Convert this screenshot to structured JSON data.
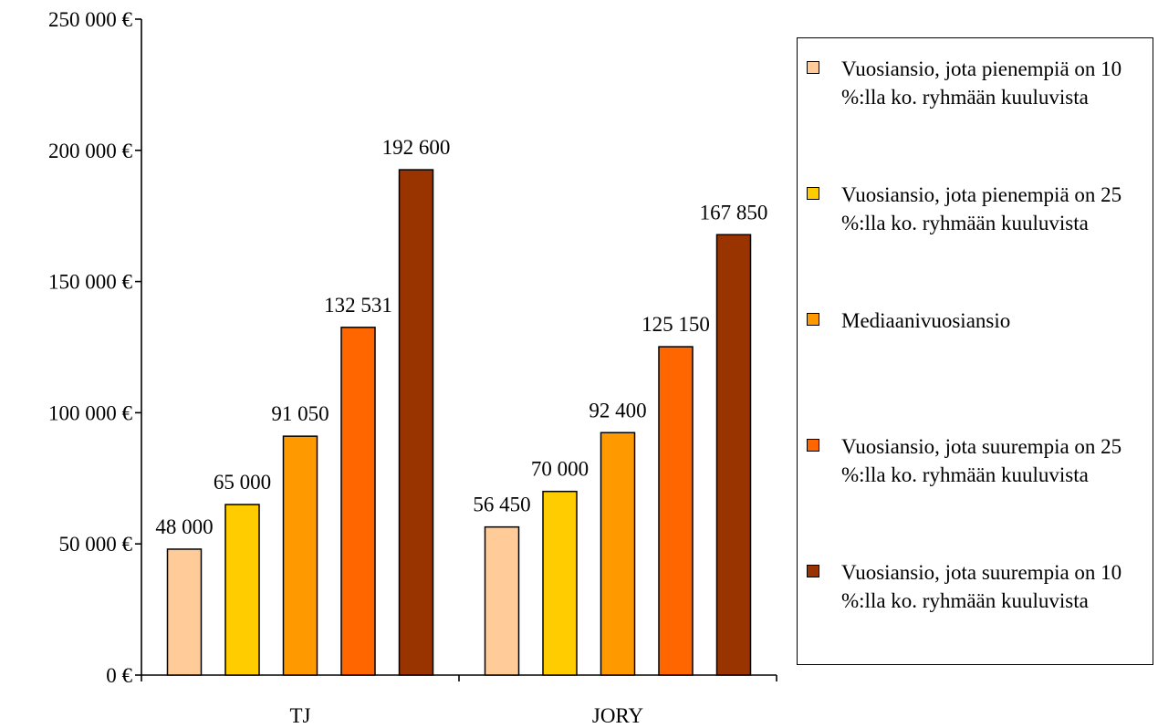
{
  "chart_data": {
    "type": "bar",
    "categories": [
      "TJ",
      "JORY"
    ],
    "series": [
      {
        "name": "Vuosiansio, jota pienempiä on 10 %:lla ko. ryhmään kuuluvista",
        "color": "#ffcc99",
        "values": [
          48000,
          56450
        ],
        "labels": [
          "48 000",
          "56 450"
        ]
      },
      {
        "name": "Vuosiansio, jota pienempiä on 25 %:lla ko. ryhmään kuuluvista",
        "color": "#ffcc00",
        "values": [
          65000,
          70000
        ],
        "labels": [
          "65 000",
          "70 000"
        ]
      },
      {
        "name": "Mediaanivuosiansio",
        "color": "#ff9900",
        "values": [
          91050,
          92400
        ],
        "labels": [
          "91 050",
          "92 400"
        ]
      },
      {
        "name": "Vuosiansio, jota suurempia on 25 %:lla ko. ryhmään kuuluvista",
        "color": "#ff6600",
        "values": [
          132531,
          125150
        ],
        "labels": [
          "132 531",
          "125 150"
        ]
      },
      {
        "name": "Vuosiansio, jota suurempia on 10 %:lla ko. ryhmään kuuluvista",
        "color": "#993300",
        "values": [
          192600,
          167850
        ],
        "labels": [
          "192 600",
          "167 850"
        ]
      }
    ],
    "ylim": [
      0,
      250000
    ],
    "yticks": [
      0,
      50000,
      100000,
      150000,
      200000,
      250000
    ],
    "ytick_labels": [
      "0 €",
      "50 000 €",
      "100 000 €",
      "150 000 €",
      "200 000 €",
      "250 000 €"
    ],
    "xlabel": "",
    "ylabel": "",
    "title": "",
    "grid": false,
    "legend": "right"
  }
}
